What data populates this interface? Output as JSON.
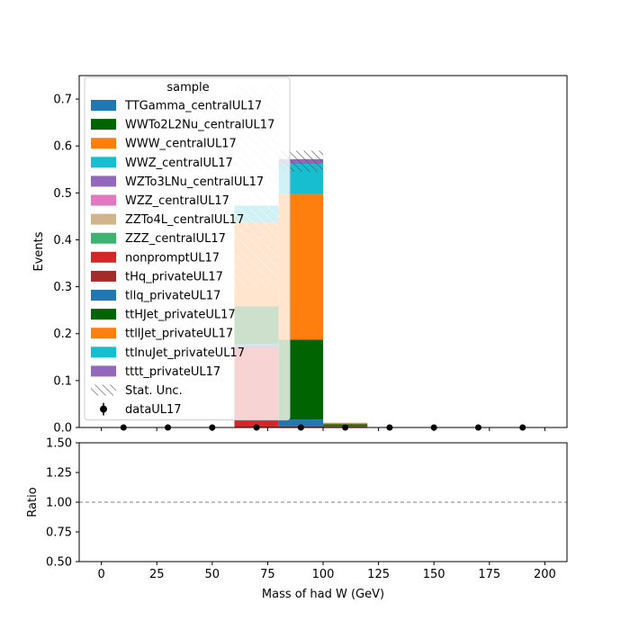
{
  "chart_data": {
    "type": "bar",
    "stacked": true,
    "xlabel": "Mass of had W (GeV)",
    "ylabel": "Events",
    "ratio_ylabel": "Ratio",
    "xlim": [
      -10,
      210
    ],
    "ylim": [
      0,
      0.75
    ],
    "ratio_ylim": [
      0.5,
      1.5
    ],
    "xticks": [
      "0",
      "25",
      "50",
      "75",
      "100",
      "125",
      "150",
      "175",
      "200"
    ],
    "yticks": [
      "0.0",
      "0.1",
      "0.2",
      "0.3",
      "0.4",
      "0.5",
      "0.6",
      "0.7"
    ],
    "ratio_yticks": [
      "0.50",
      "0.75",
      "1.00",
      "1.25",
      "1.50"
    ],
    "ratio_reference_line": 1.0,
    "bin_edges": [
      0,
      20,
      40,
      60,
      80,
      100,
      120,
      140,
      160,
      180,
      200
    ],
    "legend": {
      "title": "sample",
      "placement": "upper-left",
      "stat_unc_label": "Stat. Unc.",
      "data_label": "dataUL17"
    },
    "series": [
      {
        "name": "TTGamma_centralUL17",
        "color": "#1f77b4",
        "values": [
          0,
          0,
          0,
          0.0,
          0.0,
          0,
          0,
          0,
          0,
          0
        ]
      },
      {
        "name": "WWTo2L2Nu_centralUL17",
        "color": "#006400",
        "values": [
          0,
          0,
          0,
          0.0,
          0.0,
          0,
          0,
          0,
          0,
          0
        ]
      },
      {
        "name": "WWW_centralUL17",
        "color": "#ff7f0e",
        "values": [
          0,
          0,
          0,
          0.0,
          0.0,
          0,
          0,
          0,
          0,
          0
        ]
      },
      {
        "name": "WWZ_centralUL17",
        "color": "#17becf",
        "values": [
          0,
          0,
          0,
          0.0,
          0.0,
          0,
          0,
          0,
          0,
          0
        ]
      },
      {
        "name": "WZTo3LNu_centralUL17",
        "color": "#9467bd",
        "values": [
          0,
          0,
          0,
          0.0,
          0.0,
          0,
          0,
          0,
          0,
          0
        ]
      },
      {
        "name": "WZZ_centralUL17",
        "color": "#e377c2",
        "values": [
          0,
          0,
          0,
          0.0,
          0.0,
          0,
          0,
          0,
          0,
          0
        ]
      },
      {
        "name": "ZZTo4L_centralUL17",
        "color": "#d2b48c",
        "values": [
          0,
          0,
          0,
          0.0,
          0.0,
          0,
          0,
          0,
          0,
          0
        ]
      },
      {
        "name": "ZZZ_centralUL17",
        "color": "#3cb371",
        "values": [
          0,
          0,
          0,
          0.0,
          0.0,
          0,
          0,
          0,
          0,
          0
        ]
      },
      {
        "name": "nonpromptUL17",
        "color": "#d62728",
        "values": [
          0,
          0,
          0,
          0.17,
          0.0,
          0.002,
          0,
          0,
          0,
          0
        ]
      },
      {
        "name": "tHq_privateUL17",
        "color": "#a52a2a",
        "values": [
          0,
          0,
          0,
          0.003,
          0.002,
          0.0005,
          0,
          0,
          0,
          0
        ]
      },
      {
        "name": "tllq_privateUL17",
        "color": "#1f77b4",
        "values": [
          0,
          0,
          0,
          0.005,
          0.015,
          0.0005,
          0,
          0,
          0,
          0
        ]
      },
      {
        "name": "ttHJet_privateUL17",
        "color": "#006400",
        "values": [
          0,
          0,
          0,
          0.08,
          0.17,
          0.004,
          0,
          0,
          0,
          0
        ]
      },
      {
        "name": "ttllJet_privateUL17",
        "color": "#ff7f0e",
        "values": [
          0,
          0,
          0,
          0.18,
          0.31,
          0.002,
          0,
          0,
          0,
          0
        ]
      },
      {
        "name": "ttlnuJet_privateUL17",
        "color": "#17becf",
        "values": [
          0,
          0,
          0,
          0.035,
          0.065,
          0.001,
          0,
          0,
          0,
          0
        ]
      },
      {
        "name": "tttt_privateUL17",
        "color": "#9467bd",
        "values": [
          0,
          0,
          0,
          0.0,
          0.01,
          0,
          0,
          0,
          0,
          0
        ]
      }
    ],
    "stat_unc": [
      {
        "bin": 3,
        "low": 0.3,
        "high": 0.73
      },
      {
        "bin": 4,
        "low": 0.545,
        "high": 0.59
      }
    ],
    "data_points": {
      "x": [
        10,
        30,
        50,
        70,
        90,
        110,
        130,
        150,
        170,
        190
      ],
      "y": [
        0,
        0,
        0,
        0,
        0,
        0,
        0,
        0,
        0,
        0
      ]
    }
  }
}
